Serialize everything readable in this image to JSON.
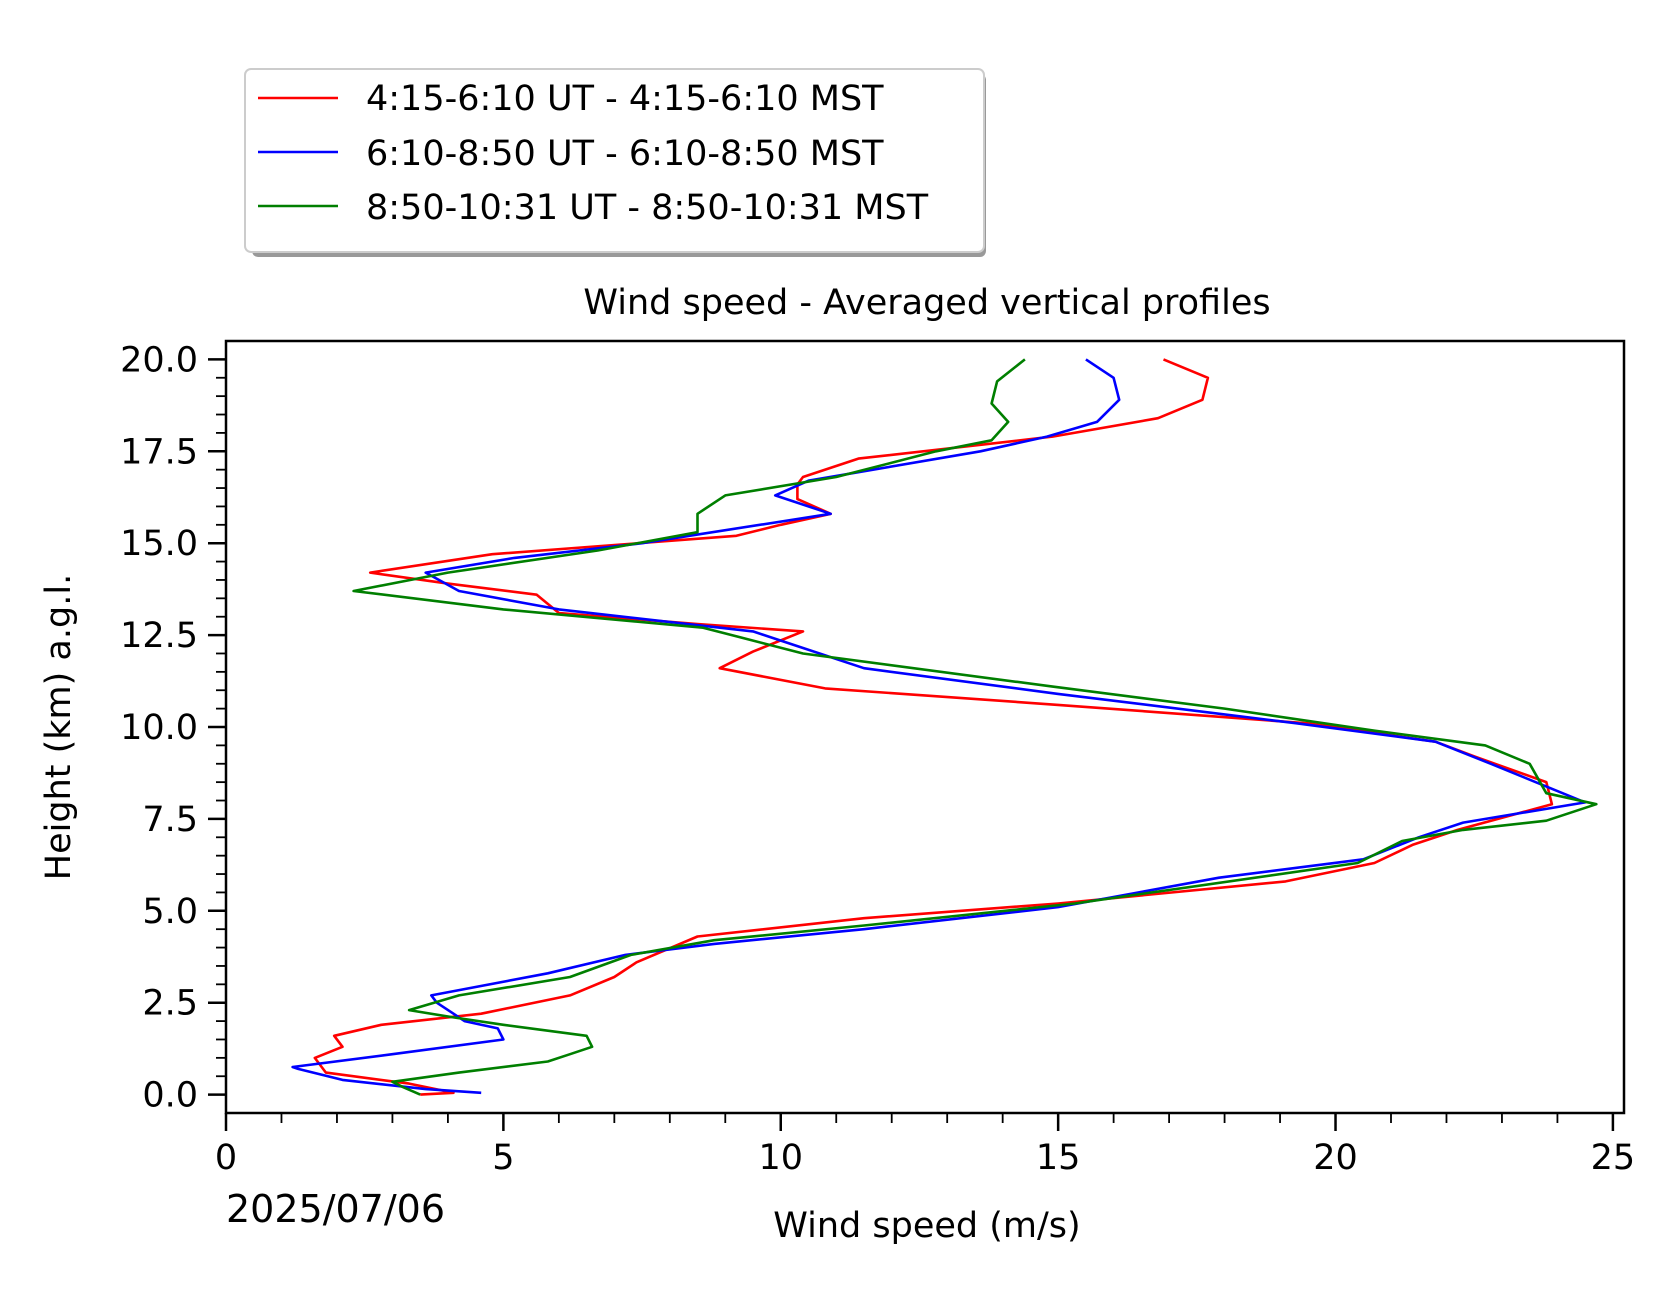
{
  "chart_data": {
    "type": "line",
    "title": "Wind speed - Averaged vertical profiles",
    "xlabel": "Wind speed (m/s)",
    "ylabel": "Height (km) a.g.l.",
    "date_label": "2025/07/06",
    "xlim": [
      0,
      25.2
    ],
    "ylim": [
      -0.5,
      20.5
    ],
    "x_ticks": [
      "0",
      "5",
      "10",
      "15",
      "20",
      "25"
    ],
    "y_ticks": [
      "0.0",
      "2.5",
      "5.0",
      "7.5",
      "10.0",
      "12.5",
      "15.0",
      "17.5",
      "20.0"
    ],
    "grid": false,
    "legend_position": "above-left",
    "series": [
      {
        "name": "4:15-6:10 UT - 4:15-6:10 MST",
        "color": "#ff0000",
        "points": [
          [
            3.5,
            0.0
          ],
          [
            4.1,
            0.05
          ],
          [
            3.3,
            0.3
          ],
          [
            1.8,
            0.6
          ],
          [
            1.6,
            1.0
          ],
          [
            2.1,
            1.3
          ],
          [
            1.95,
            1.6
          ],
          [
            2.8,
            1.9
          ],
          [
            4.6,
            2.2
          ],
          [
            6.2,
            2.7
          ],
          [
            7.0,
            3.2
          ],
          [
            7.4,
            3.6
          ],
          [
            8.5,
            4.3
          ],
          [
            11.5,
            4.8
          ],
          [
            15.0,
            5.2
          ],
          [
            19.1,
            5.8
          ],
          [
            20.7,
            6.3
          ],
          [
            21.4,
            6.8
          ],
          [
            22.2,
            7.2
          ],
          [
            23.9,
            7.9
          ],
          [
            23.8,
            8.5
          ],
          [
            22.5,
            9.2
          ],
          [
            21.8,
            9.6
          ],
          [
            19.5,
            10.1
          ],
          [
            15.0,
            10.6
          ],
          [
            10.8,
            11.05
          ],
          [
            8.9,
            11.6
          ],
          [
            9.5,
            12.05
          ],
          [
            10.4,
            12.6
          ],
          [
            8.5,
            12.8
          ],
          [
            6.0,
            13.1
          ],
          [
            5.6,
            13.6
          ],
          [
            4.0,
            13.9
          ],
          [
            2.6,
            14.2
          ],
          [
            4.8,
            14.7
          ],
          [
            9.2,
            15.2
          ],
          [
            10.0,
            15.5
          ],
          [
            10.9,
            15.8
          ],
          [
            10.3,
            16.2
          ],
          [
            10.3,
            16.6
          ],
          [
            10.4,
            16.8
          ],
          [
            11.4,
            17.3
          ],
          [
            14.9,
            17.9
          ],
          [
            16.8,
            18.4
          ],
          [
            17.6,
            18.9
          ],
          [
            17.7,
            19.5
          ],
          [
            16.9,
            20.0
          ]
        ]
      },
      {
        "name": "6:10-8:50 UT - 6:10-8:50 MST",
        "color": "#0000ff",
        "points": [
          [
            4.6,
            0.05
          ],
          [
            3.6,
            0.15
          ],
          [
            2.1,
            0.4
          ],
          [
            1.3,
            0.7
          ],
          [
            1.2,
            0.75
          ],
          [
            3.0,
            1.1
          ],
          [
            5.0,
            1.5
          ],
          [
            4.9,
            1.8
          ],
          [
            4.3,
            2.0
          ],
          [
            4.1,
            2.2
          ],
          [
            3.8,
            2.5
          ],
          [
            3.7,
            2.7
          ],
          [
            5.8,
            3.3
          ],
          [
            7.2,
            3.8
          ],
          [
            8.8,
            4.1
          ],
          [
            11.5,
            4.5
          ],
          [
            15.0,
            5.1
          ],
          [
            17.9,
            5.9
          ],
          [
            20.5,
            6.4
          ],
          [
            21.5,
            7.0
          ],
          [
            22.3,
            7.4
          ],
          [
            24.5,
            7.95
          ],
          [
            22.8,
            9.0
          ],
          [
            21.8,
            9.6
          ],
          [
            19.3,
            10.1
          ],
          [
            15.0,
            10.9
          ],
          [
            11.5,
            11.6
          ],
          [
            10.3,
            12.2
          ],
          [
            9.5,
            12.6
          ],
          [
            6.0,
            13.2
          ],
          [
            4.2,
            13.7
          ],
          [
            3.6,
            14.2
          ],
          [
            5.2,
            14.6
          ],
          [
            7.5,
            15.0
          ],
          [
            10.9,
            15.8
          ],
          [
            9.9,
            16.3
          ],
          [
            10.5,
            16.7
          ],
          [
            13.6,
            17.5
          ],
          [
            14.8,
            17.9
          ],
          [
            15.7,
            18.3
          ],
          [
            16.1,
            18.9
          ],
          [
            16.0,
            19.5
          ],
          [
            15.5,
            20.0
          ]
        ]
      },
      {
        "name": "8:50-10:31 UT - 8:50-10:31 MST",
        "color": "#007f00",
        "points": [
          [
            3.5,
            0.0
          ],
          [
            3.2,
            0.2
          ],
          [
            3.0,
            0.35
          ],
          [
            4.2,
            0.6
          ],
          [
            5.8,
            0.9
          ],
          [
            6.2,
            1.1
          ],
          [
            6.6,
            1.3
          ],
          [
            6.5,
            1.6
          ],
          [
            5.0,
            1.9
          ],
          [
            4.1,
            2.1
          ],
          [
            3.3,
            2.3
          ],
          [
            4.2,
            2.7
          ],
          [
            6.2,
            3.2
          ],
          [
            7.3,
            3.8
          ],
          [
            8.8,
            4.2
          ],
          [
            11.5,
            4.6
          ],
          [
            15.3,
            5.2
          ],
          [
            20.4,
            6.3
          ],
          [
            21.2,
            6.9
          ],
          [
            22.3,
            7.2
          ],
          [
            23.8,
            7.45
          ],
          [
            24.7,
            7.9
          ],
          [
            23.8,
            8.2
          ],
          [
            23.5,
            9.0
          ],
          [
            22.7,
            9.5
          ],
          [
            20.7,
            9.9
          ],
          [
            18.0,
            10.5
          ],
          [
            14.9,
            11.1
          ],
          [
            10.4,
            12.0
          ],
          [
            8.6,
            12.7
          ],
          [
            5.0,
            13.2
          ],
          [
            2.3,
            13.7
          ],
          [
            4.0,
            14.2
          ],
          [
            6.7,
            14.8
          ],
          [
            8.5,
            15.3
          ],
          [
            8.5,
            15.8
          ],
          [
            9.0,
            16.3
          ],
          [
            11.0,
            16.8
          ],
          [
            12.8,
            17.5
          ],
          [
            13.8,
            17.8
          ],
          [
            14.1,
            18.3
          ],
          [
            13.8,
            18.8
          ],
          [
            13.9,
            19.4
          ],
          [
            14.4,
            20.0
          ]
        ]
      }
    ]
  }
}
